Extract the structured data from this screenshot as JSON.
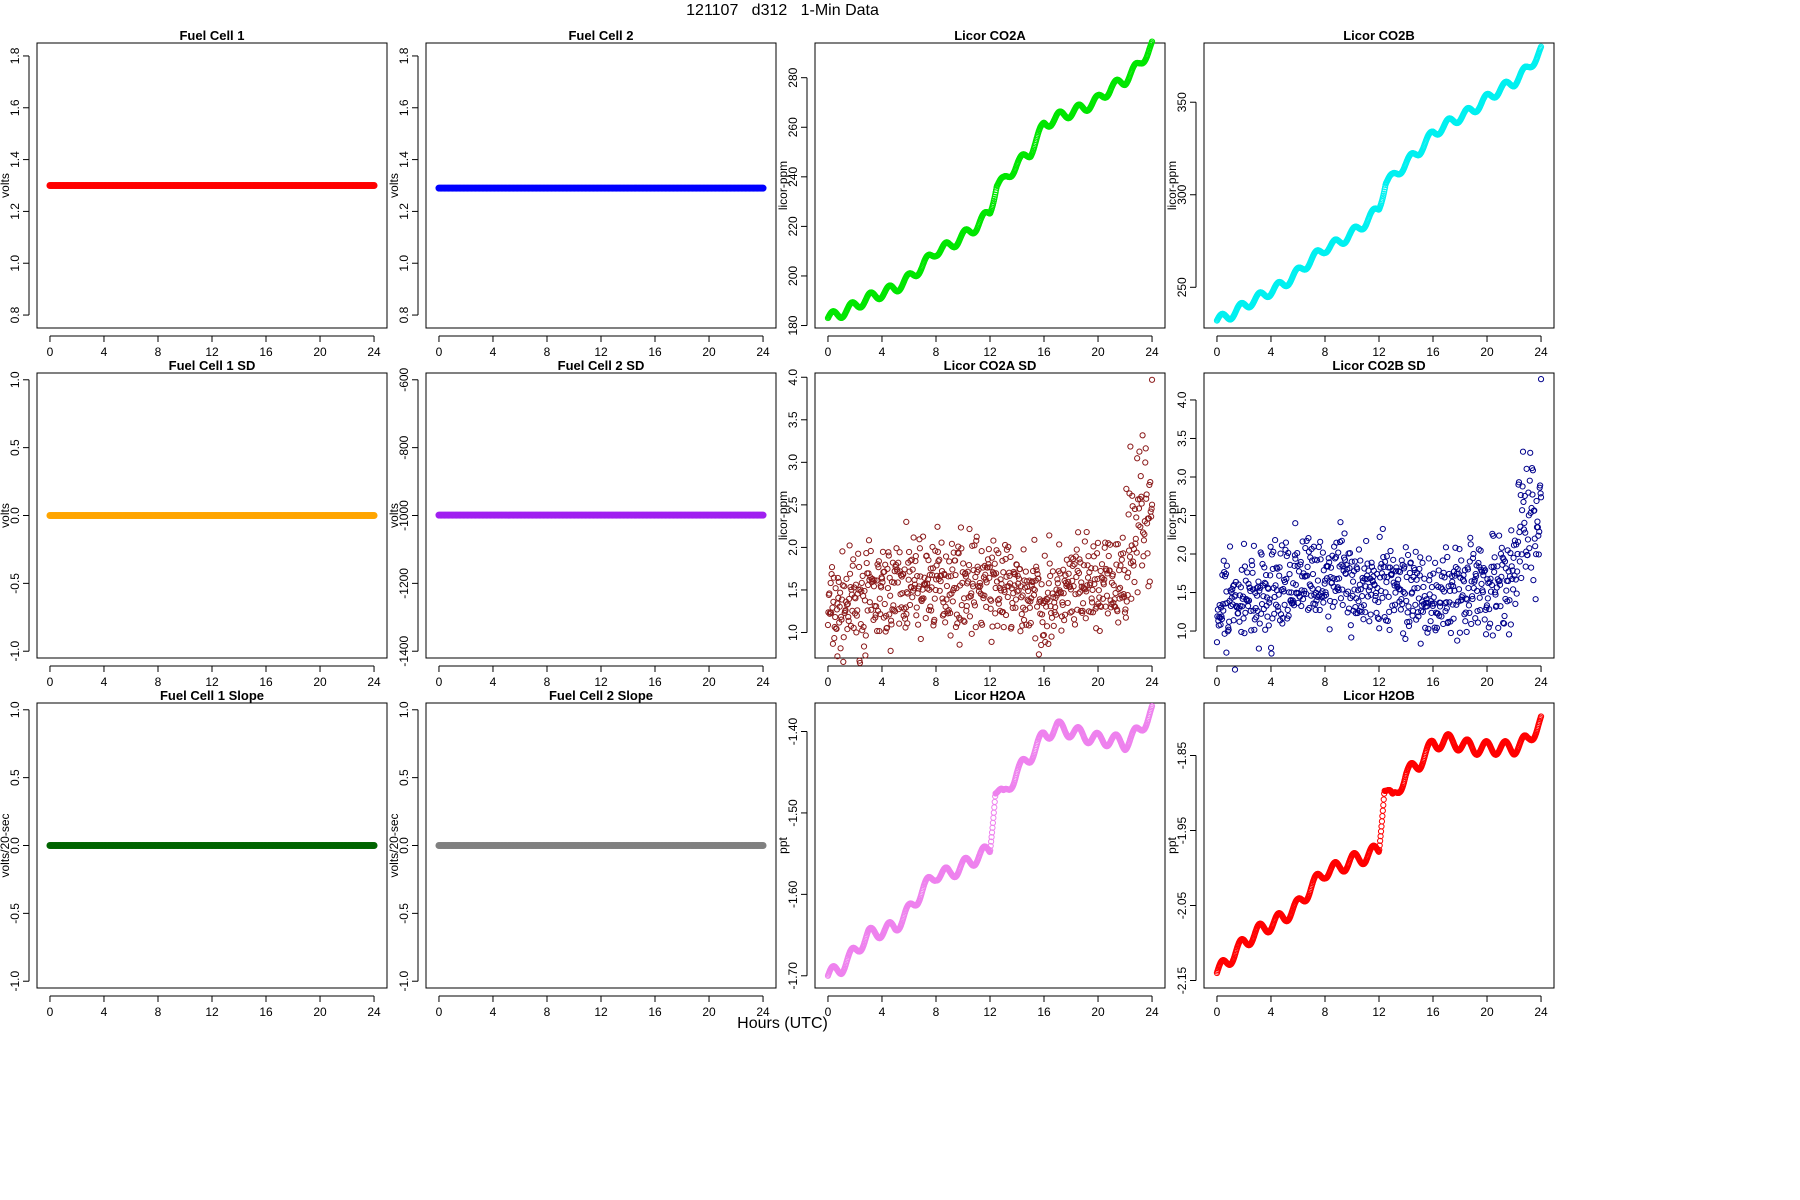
{
  "page": {
    "title": "121107   d312   1-Min Data",
    "xlabel": "Hours (UTC)"
  },
  "chart_data": [
    {
      "type": "scatter",
      "title": "Fuel Cell 1",
      "ylabel": "volts",
      "color": "#ff0000",
      "xlim": [
        0,
        24
      ],
      "ylim": [
        0.75,
        1.85
      ],
      "xticks": [
        0,
        4,
        8,
        12,
        16,
        20,
        24
      ],
      "yticks": [
        0.8,
        1.0,
        1.2,
        1.4,
        1.6,
        1.8
      ],
      "ytick_labels": [
        "0.8",
        "1.0",
        "1.2",
        "1.4",
        "1.6",
        "1.8"
      ],
      "mode": "constant",
      "value": 1.3,
      "series_name": ""
    },
    {
      "type": "scatter",
      "title": "Fuel Cell 2",
      "ylabel": "volts",
      "color": "#0000ff",
      "xlim": [
        0,
        24
      ],
      "ylim": [
        0.75,
        1.85
      ],
      "xticks": [
        0,
        4,
        8,
        12,
        16,
        20,
        24
      ],
      "yticks": [
        0.8,
        1.0,
        1.2,
        1.4,
        1.6,
        1.8
      ],
      "ytick_labels": [
        "0.8",
        "1.0",
        "1.2",
        "1.4",
        "1.6",
        "1.8"
      ],
      "mode": "constant",
      "value": 1.29
    },
    {
      "type": "scatter",
      "title": "Licor CO2A",
      "ylabel": "licor-ppm",
      "color": "#00e600",
      "xlim": [
        0,
        24
      ],
      "ylim": [
        179,
        294
      ],
      "xticks": [
        0,
        4,
        8,
        12,
        16,
        20,
        24
      ],
      "yticks": [
        180,
        200,
        220,
        240,
        260,
        280
      ],
      "ytick_labels": [
        "180",
        "200",
        "220",
        "240",
        "260",
        "280"
      ],
      "mode": "trend",
      "knots_x": [
        0,
        1,
        2,
        3,
        4,
        5,
        6,
        7,
        8,
        9,
        10,
        11,
        12,
        12.5,
        13,
        14,
        15,
        16,
        17,
        18,
        19,
        20,
        21,
        22,
        23,
        24
      ],
      "knots_y": [
        183,
        185,
        188,
        191,
        193,
        195,
        199,
        204,
        210,
        212,
        216,
        220,
        226,
        237,
        238,
        245,
        250,
        261,
        264,
        266,
        268,
        271,
        276,
        279,
        285,
        293
      ],
      "wobble": 2
    },
    {
      "type": "scatter",
      "title": "Licor CO2B",
      "ylabel": "licor-ppm",
      "color": "#00f0f0",
      "xlim": [
        0,
        24
      ],
      "ylim": [
        228,
        382
      ],
      "xticks": [
        0,
        4,
        8,
        12,
        16,
        20,
        24
      ],
      "yticks": [
        250,
        300,
        350
      ],
      "ytick_labels": [
        "250",
        "300",
        "350"
      ],
      "mode": "trend",
      "knots_x": [
        0,
        1,
        2,
        3,
        4,
        5,
        6,
        7,
        8,
        9,
        10,
        11,
        12,
        12.5,
        13,
        14,
        15,
        16,
        17,
        18,
        19,
        20,
        21,
        22,
        23,
        24
      ],
      "knots_y": [
        232,
        235,
        240,
        244,
        248,
        252,
        258,
        265,
        271,
        274,
        279,
        285,
        293,
        307,
        309,
        317,
        324,
        333,
        338,
        342,
        346,
        352,
        357,
        361,
        368,
        378
      ],
      "wobble": 2.5
    },
    {
      "type": "scatter",
      "title": "Fuel Cell 1 SD",
      "ylabel": "volts",
      "color": "#ffa500",
      "xlim": [
        0,
        24
      ],
      "ylim": [
        -1.05,
        1.05
      ],
      "xticks": [
        0,
        4,
        8,
        12,
        16,
        20,
        24
      ],
      "yticks": [
        -1.0,
        -0.5,
        0.0,
        0.5,
        1.0
      ],
      "ytick_labels": [
        "-1.0",
        "-0.5",
        "0.0",
        "0.5",
        "1.0"
      ],
      "mode": "constant",
      "value": 0.0
    },
    {
      "type": "scatter",
      "title": "Fuel Cell 2 SD",
      "ylabel": "volts",
      "color": "#a020f0",
      "xlim": [
        0,
        24
      ],
      "ylim": [
        -1420,
        -580
      ],
      "xticks": [
        0,
        4,
        8,
        12,
        16,
        20,
        24
      ],
      "yticks": [
        -1400,
        -1200,
        -1000,
        -800,
        -600
      ],
      "ytick_labels": [
        "-1400",
        "-1200",
        "-1000",
        "-800",
        "-600"
      ],
      "mode": "constant",
      "value": -999
    },
    {
      "type": "scatter",
      "title": "Licor CO2A SD",
      "ylabel": "licor-ppm",
      "color": "#8b1a1a",
      "xlim": [
        0,
        24
      ],
      "ylim": [
        0.7,
        4.05
      ],
      "xticks": [
        0,
        4,
        8,
        12,
        16,
        20,
        24
      ],
      "yticks": [
        1.0,
        1.5,
        2.0,
        2.5,
        3.0,
        3.5,
        4.0
      ],
      "ytick_labels": [
        "1.0",
        "1.5",
        "2.0",
        "2.5",
        "3.0",
        "3.5",
        "4.0"
      ],
      "mode": "noise",
      "base_x": [
        0,
        4,
        8,
        12,
        16,
        20,
        21.8,
        22.3,
        24
      ],
      "base_y": [
        1.25,
        1.45,
        1.6,
        1.55,
        1.4,
        1.55,
        1.55,
        2.2,
        2.45
      ],
      "spread": 0.28,
      "outliers": [
        [
          24,
          3.97
        ],
        [
          0.7,
          0.72
        ],
        [
          5.8,
          2.3
        ]
      ],
      "seed": 7
    },
    {
      "type": "scatter",
      "title": "Licor CO2B SD",
      "ylabel": "licor-ppm",
      "color": "#00008b",
      "xlim": [
        0,
        24
      ],
      "ylim": [
        0.65,
        4.35
      ],
      "xticks": [
        0,
        4,
        8,
        12,
        16,
        20,
        24
      ],
      "yticks": [
        1.0,
        1.5,
        2.0,
        2.5,
        3.0,
        3.5,
        4.0
      ],
      "ytick_labels": [
        "1.0",
        "1.5",
        "2.0",
        "2.5",
        "3.0",
        "3.5",
        "4.0"
      ],
      "mode": "noise",
      "base_x": [
        0,
        4,
        8,
        12,
        16,
        20,
        21.8,
        22.3,
        24
      ],
      "base_y": [
        1.3,
        1.5,
        1.7,
        1.65,
        1.45,
        1.6,
        1.6,
        2.3,
        2.65
      ],
      "spread": 0.3,
      "outliers": [
        [
          24,
          4.27
        ],
        [
          0.7,
          0.72
        ],
        [
          5.8,
          2.4
        ]
      ],
      "seed": 11
    },
    {
      "type": "scatter",
      "title": "Fuel Cell 1 Slope",
      "ylabel": "volts/20-sec",
      "color": "#006400",
      "xlim": [
        0,
        24
      ],
      "ylim": [
        -1.05,
        1.05
      ],
      "xticks": [
        0,
        4,
        8,
        12,
        16,
        20,
        24
      ],
      "yticks": [
        -1.0,
        -0.5,
        0.0,
        0.5,
        1.0
      ],
      "ytick_labels": [
        "-1.0",
        "-0.5",
        "0.0",
        "0.5",
        "1.0"
      ],
      "mode": "constant",
      "value": 0.0
    },
    {
      "type": "scatter",
      "title": "Fuel Cell 2 Slope",
      "ylabel": "volts/20-sec",
      "color": "#808080",
      "xlim": [
        0,
        24
      ],
      "ylim": [
        -1.05,
        1.05
      ],
      "xticks": [
        0,
        4,
        8,
        12,
        16,
        20,
        24
      ],
      "yticks": [
        -1.0,
        -0.5,
        0.0,
        0.5,
        1.0
      ],
      "ytick_labels": [
        "-1.0",
        "-0.5",
        "0.0",
        "0.5",
        "1.0"
      ],
      "mode": "constant",
      "value": 0.0
    },
    {
      "type": "scatter",
      "title": "Licor H2OA",
      "ylabel": "ppt",
      "color": "#ee82ee",
      "xlim": [
        0,
        24
      ],
      "ylim": [
        -1.715,
        -1.365
      ],
      "xticks": [
        0,
        4,
        8,
        12,
        16,
        20,
        24
      ],
      "yticks": [
        -1.7,
        -1.6,
        -1.5,
        -1.4
      ],
      "ytick_labels": [
        "-1.70",
        "-1.60",
        "-1.50",
        "-1.40"
      ],
      "mode": "trend",
      "knots_x": [
        0,
        1,
        2,
        3,
        4,
        5,
        6,
        7,
        8,
        9,
        10,
        11,
        12,
        12.4,
        13,
        14,
        15,
        16,
        17,
        18,
        19,
        20,
        21,
        22,
        23,
        24
      ],
      "knots_y": [
        -1.7,
        -1.69,
        -1.67,
        -1.65,
        -1.645,
        -1.64,
        -1.62,
        -1.595,
        -1.575,
        -1.575,
        -1.565,
        -1.555,
        -1.545,
        -1.47,
        -1.48,
        -1.45,
        -1.43,
        -1.405,
        -1.395,
        -1.4,
        -1.405,
        -1.41,
        -1.41,
        -1.415,
        -1.4,
        -1.375
      ],
      "wobble": 0.008
    },
    {
      "type": "scatter",
      "title": "Licor H2OB",
      "ylabel": "ppt",
      "color": "#ff0000",
      "xlim": [
        0,
        24
      ],
      "ylim": [
        -2.16,
        -1.78
      ],
      "xticks": [
        0,
        4,
        8,
        12,
        16,
        20,
        24
      ],
      "yticks": [
        -2.15,
        -2.05,
        -1.95,
        -1.85
      ],
      "ytick_labels": [
        "-2.15",
        "-2.05",
        "-1.95",
        "-1.85"
      ],
      "mode": "trend",
      "knots_x": [
        0,
        1,
        2,
        3,
        4,
        5,
        6,
        7,
        8,
        9,
        10,
        11,
        12,
        12.4,
        13,
        14,
        15,
        16,
        17,
        18,
        19,
        20,
        21,
        22,
        23,
        24
      ],
      "knots_y": [
        -2.14,
        -2.12,
        -2.1,
        -2.085,
        -2.075,
        -2.065,
        -2.05,
        -2.025,
        -2.005,
        -2.0,
        -1.99,
        -1.985,
        -1.975,
        -1.89,
        -1.91,
        -1.875,
        -1.86,
        -1.835,
        -1.83,
        -1.835,
        -1.84,
        -1.84,
        -1.84,
        -1.84,
        -1.83,
        -1.805
      ],
      "wobble": 0.009
    }
  ]
}
